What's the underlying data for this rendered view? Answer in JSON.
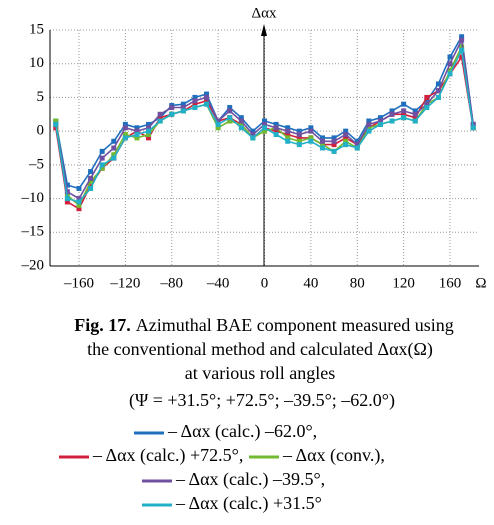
{
  "chart_data": {
    "type": "line",
    "y_label": "Δαx",
    "x_label": "Ω",
    "x": [
      -180,
      -170,
      -160,
      -150,
      -140,
      -130,
      -120,
      -110,
      -100,
      -90,
      -80,
      -70,
      -60,
      -50,
      -40,
      -30,
      -20,
      -10,
      0,
      10,
      20,
      30,
      40,
      50,
      60,
      70,
      80,
      90,
      100,
      110,
      120,
      130,
      140,
      150,
      160,
      170,
      180
    ],
    "xlim": [
      -185,
      185
    ],
    "ylim": [
      -20,
      15
    ],
    "xticks": [
      {
        "value": -160,
        "label": "–160"
      },
      {
        "value": -120,
        "label": "–120"
      },
      {
        "value": -80,
        "label": "–80"
      },
      {
        "value": -40,
        "label": "–40"
      },
      0,
      40,
      80,
      120,
      160
    ],
    "yticks": [
      {
        "value": -20,
        "label": "–20"
      },
      {
        "value": -15,
        "label": "–15"
      },
      {
        "value": -10,
        "label": "–10"
      },
      {
        "value": -5,
        "label": "–5"
      },
      0,
      5,
      10,
      15
    ],
    "grid": true,
    "series": [
      {
        "name": "– Δαx (calc.) –62.0°,",
        "color": "#1f6fbf",
        "values": [
          1.5,
          -8,
          -8.5,
          -6,
          -3,
          -1.5,
          1,
          0.5,
          1,
          2,
          3.8,
          4,
          5,
          5.5,
          1.5,
          3.5,
          2,
          0,
          1.5,
          1,
          0.5,
          0,
          0.5,
          -1,
          -1,
          0,
          -1.5,
          1.5,
          2,
          3,
          4,
          3,
          4.5,
          7,
          11,
          14,
          1
        ]
      },
      {
        "name": "– Δαx (calc.) +72.5°,",
        "color": "#d0203c",
        "values": [
          0.5,
          -10.5,
          -11.5,
          -8,
          -5.5,
          -4,
          -1,
          0,
          -1,
          2,
          2.5,
          3,
          4,
          4.5,
          1.5,
          2,
          1,
          -1,
          0.5,
          0,
          -0.5,
          -1,
          -1,
          -2,
          -2,
          -1,
          -2,
          0.5,
          1.5,
          2.5,
          2.5,
          2,
          5,
          6,
          8.5,
          11,
          0.5
        ]
      },
      {
        "name": "– Δαx (conv.),",
        "color": "#72b830",
        "values": [
          1.5,
          -9.5,
          -11,
          -7.5,
          -5.5,
          -3.5,
          -0.5,
          -1,
          -0.5,
          1.5,
          2.5,
          3,
          3.5,
          4,
          0.5,
          1.5,
          1,
          -1,
          0,
          0.5,
          -1,
          -1.5,
          -1,
          -2,
          -3,
          -1.5,
          -2.5,
          0.5,
          1,
          1.5,
          2,
          1.5,
          4,
          5,
          9,
          12.5,
          0.5
        ]
      },
      {
        "name": "– Δαx (calc.) –39.5°,",
        "color": "#7050a0",
        "values": [
          1,
          -9,
          -10,
          -7,
          -4,
          -2.5,
          0.5,
          0,
          0.5,
          2.5,
          3.5,
          3.5,
          4.5,
          5,
          1.5,
          3,
          1.5,
          -0.5,
          1,
          0.5,
          0,
          -0.5,
          0,
          -1.5,
          -1.5,
          -0.5,
          -2,
          1,
          1.5,
          2.5,
          3,
          2.5,
          4,
          6,
          10,
          13.5,
          1
        ]
      },
      {
        "name": "– Δαx (calc.) +31.5°",
        "color": "#22b0c8",
        "values": [
          1,
          -10,
          -10.5,
          -8.5,
          -5,
          -4,
          -1,
          -0.5,
          0,
          1.5,
          2.5,
          3,
          3.5,
          4,
          1,
          2,
          0.5,
          -1,
          0.5,
          -0.5,
          -1.5,
          -2,
          -1.5,
          -2.5,
          -3,
          -2,
          -2.5,
          0,
          1,
          1.5,
          2,
          1.5,
          3.5,
          5,
          8.5,
          12,
          0.5
        ]
      }
    ],
    "caption_label": "Fig. 17.",
    "caption_lines": [
      "Azimuthal BAE component measured using",
      "the conventional method and calculated Δαx(Ω)",
      "at various roll angles"
    ],
    "subtitle": "(Ψ = +31.5°; +72.5°; –39.5°; –62.0°)"
  }
}
